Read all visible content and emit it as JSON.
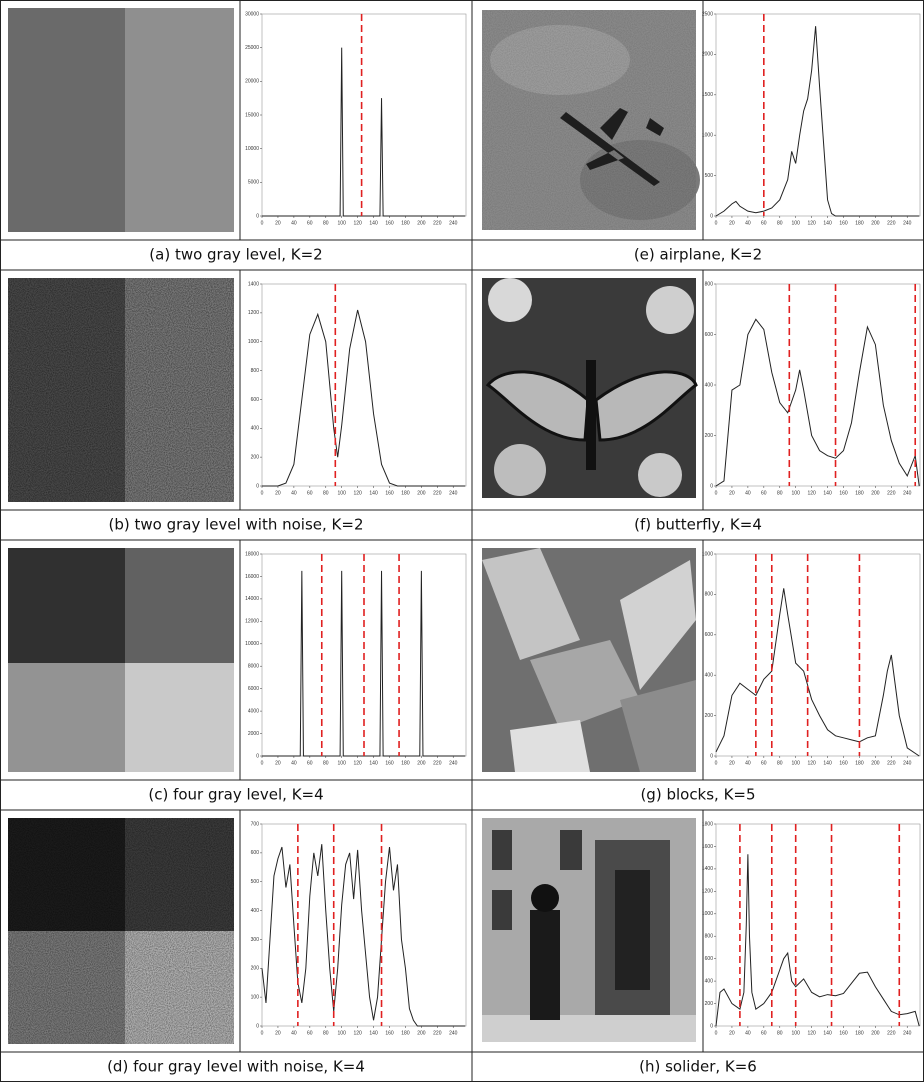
{
  "captions": [
    "(a)  two gray level, K=2",
    "(b)  two gray level with noise, K=2",
    "(c)  four gray level, K=4",
    "(d)  four gray level with noise, K=4",
    "(e) airplane, K=2",
    "(f) butterfly, K=4",
    "(g) blocks, K=5",
    "(h) solider, K=6"
  ],
  "chart_data": [
    {
      "type": "line",
      "color": "#222222",
      "threshold_color": "#e02020",
      "xlim": [
        0,
        256
      ],
      "ylim": [
        0,
        30000
      ],
      "xticks": [
        0,
        20,
        40,
        60,
        80,
        100,
        120,
        140,
        160,
        180,
        200,
        220,
        240
      ],
      "yticks": [
        0,
        5000,
        10000,
        15000,
        20000,
        25000,
        30000
      ],
      "thresholds": [
        125
      ],
      "x": [
        0,
        98,
        100,
        102,
        148,
        150,
        152,
        255
      ],
      "values": [
        0,
        0,
        25000,
        0,
        0,
        17500,
        0,
        0
      ]
    },
    {
      "type": "line",
      "color": "#222222",
      "threshold_color": "#e02020",
      "xlim": [
        0,
        256
      ],
      "ylim": [
        0,
        1400
      ],
      "xticks": [
        0,
        20,
        40,
        60,
        80,
        100,
        120,
        140,
        160,
        180,
        200,
        220,
        240
      ],
      "yticks": [
        0,
        200,
        400,
        600,
        800,
        1000,
        1200,
        1400
      ],
      "thresholds": [
        92
      ],
      "x": [
        0,
        20,
        30,
        40,
        50,
        60,
        70,
        80,
        90,
        95,
        100,
        110,
        120,
        130,
        140,
        150,
        160,
        170,
        255
      ],
      "values": [
        0,
        0,
        20,
        150,
        600,
        1050,
        1190,
        1000,
        400,
        200,
        420,
        950,
        1220,
        1000,
        500,
        150,
        20,
        0,
        0
      ]
    },
    {
      "type": "line",
      "color": "#222222",
      "threshold_color": "#e02020",
      "xlim": [
        0,
        256
      ],
      "ylim": [
        0,
        18000
      ],
      "xticks": [
        0,
        20,
        40,
        60,
        80,
        100,
        120,
        140,
        160,
        180,
        200,
        220,
        240
      ],
      "yticks": [
        0,
        2000,
        4000,
        6000,
        8000,
        10000,
        12000,
        14000,
        16000,
        18000
      ],
      "thresholds": [
        75,
        128,
        172
      ],
      "x": [
        0,
        48,
        50,
        52,
        98,
        100,
        102,
        148,
        150,
        152,
        198,
        200,
        202,
        255
      ],
      "values": [
        0,
        0,
        16500,
        0,
        0,
        16500,
        0,
        0,
        16500,
        0,
        0,
        16500,
        0,
        0
      ]
    },
    {
      "type": "line",
      "color": "#222222",
      "threshold_color": "#e02020",
      "xlim": [
        0,
        256
      ],
      "ylim": [
        0,
        700
      ],
      "xticks": [
        0,
        20,
        40,
        60,
        80,
        100,
        120,
        140,
        160,
        180,
        200,
        220,
        240
      ],
      "yticks": [
        0,
        100,
        200,
        300,
        400,
        500,
        600,
        700
      ],
      "thresholds": [
        45,
        90,
        150
      ],
      "x": [
        0,
        5,
        10,
        15,
        20,
        25,
        30,
        35,
        40,
        45,
        50,
        55,
        60,
        65,
        70,
        75,
        80,
        85,
        90,
        95,
        100,
        105,
        110,
        115,
        120,
        125,
        130,
        135,
        140,
        145,
        150,
        155,
        160,
        165,
        170,
        175,
        180,
        185,
        190,
        195,
        200,
        205,
        255
      ],
      "values": [
        200,
        80,
        300,
        520,
        580,
        620,
        480,
        560,
        350,
        150,
        80,
        200,
        450,
        600,
        520,
        630,
        400,
        200,
        50,
        200,
        420,
        560,
        600,
        440,
        610,
        400,
        250,
        100,
        20,
        100,
        300,
        500,
        620,
        470,
        560,
        300,
        200,
        60,
        20,
        0,
        0,
        0,
        0
      ]
    },
    {
      "type": "line",
      "color": "#222222",
      "threshold_color": "#e02020",
      "xlim": [
        0,
        256
      ],
      "ylim": [
        0,
        2500
      ],
      "xticks": [
        0,
        20,
        40,
        60,
        80,
        100,
        120,
        140,
        160,
        180,
        200,
        220,
        240
      ],
      "yticks": [
        0,
        500,
        1000,
        1500,
        2000,
        2500
      ],
      "thresholds": [
        60
      ],
      "x": [
        0,
        10,
        20,
        25,
        30,
        40,
        50,
        60,
        70,
        80,
        90,
        95,
        100,
        105,
        110,
        115,
        120,
        125,
        130,
        135,
        140,
        145,
        150,
        255
      ],
      "values": [
        0,
        60,
        150,
        180,
        120,
        60,
        40,
        60,
        100,
        200,
        450,
        800,
        650,
        1000,
        1300,
        1450,
        1800,
        2350,
        1600,
        900,
        200,
        30,
        0,
        0
      ]
    },
    {
      "type": "line",
      "color": "#222222",
      "threshold_color": "#e02020",
      "xlim": [
        0,
        256
      ],
      "ylim": [
        0,
        800
      ],
      "xticks": [
        0,
        20,
        40,
        60,
        80,
        100,
        120,
        140,
        160,
        180,
        200,
        220,
        240
      ],
      "yticks": [
        0,
        200,
        400,
        600,
        800
      ],
      "thresholds": [
        92,
        150,
        250
      ],
      "x": [
        0,
        10,
        20,
        30,
        40,
        50,
        60,
        70,
        80,
        90,
        100,
        105,
        110,
        120,
        130,
        140,
        150,
        160,
        170,
        180,
        190,
        200,
        210,
        220,
        230,
        240,
        250,
        255
      ],
      "values": [
        0,
        20,
        380,
        400,
        600,
        660,
        620,
        450,
        330,
        290,
        380,
        460,
        380,
        200,
        140,
        120,
        110,
        140,
        250,
        450,
        630,
        560,
        320,
        180,
        90,
        40,
        120,
        0
      ]
    },
    {
      "type": "line",
      "color": "#222222",
      "threshold_color": "#e02020",
      "xlim": [
        0,
        256
      ],
      "ylim": [
        0,
        1000
      ],
      "xticks": [
        0,
        20,
        40,
        60,
        80,
        100,
        120,
        140,
        160,
        180,
        200,
        220,
        240
      ],
      "yticks": [
        0,
        200,
        400,
        600,
        800,
        1000
      ],
      "thresholds": [
        50,
        70,
        115,
        180
      ],
      "x": [
        0,
        10,
        20,
        30,
        40,
        50,
        60,
        70,
        80,
        85,
        90,
        100,
        110,
        120,
        130,
        140,
        150,
        160,
        170,
        180,
        190,
        200,
        210,
        215,
        220,
        230,
        240,
        255
      ],
      "values": [
        20,
        100,
        300,
        360,
        330,
        300,
        380,
        420,
        700,
        830,
        700,
        460,
        420,
        280,
        200,
        130,
        100,
        90,
        80,
        70,
        90,
        100,
        300,
        420,
        500,
        200,
        40,
        0
      ]
    },
    {
      "type": "line",
      "color": "#222222",
      "threshold_color": "#e02020",
      "xlim": [
        0,
        256
      ],
      "ylim": [
        0,
        1800
      ],
      "xticks": [
        0,
        20,
        40,
        60,
        80,
        100,
        120,
        140,
        160,
        180,
        200,
        220,
        240
      ],
      "yticks": [
        0,
        200,
        400,
        600,
        800,
        1000,
        1200,
        1400,
        1600,
        1800
      ],
      "thresholds": [
        30,
        70,
        100,
        145,
        230
      ],
      "x": [
        0,
        5,
        10,
        20,
        30,
        35,
        38,
        40,
        42,
        45,
        50,
        60,
        70,
        80,
        85,
        90,
        95,
        100,
        110,
        120,
        130,
        140,
        150,
        160,
        170,
        180,
        190,
        200,
        210,
        220,
        230,
        240,
        250,
        255
      ],
      "values": [
        0,
        300,
        330,
        200,
        150,
        300,
        900,
        1530,
        800,
        300,
        150,
        200,
        300,
        500,
        600,
        650,
        400,
        350,
        420,
        300,
        260,
        280,
        270,
        290,
        380,
        470,
        480,
        350,
        240,
        130,
        100,
        110,
        130,
        0
      ]
    }
  ]
}
